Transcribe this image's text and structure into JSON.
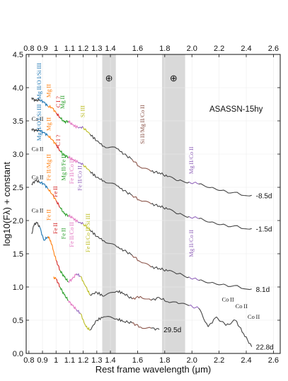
{
  "chart_data": {
    "type": "line",
    "title": "ASASSN-15hy",
    "xlabel": "Rest frame wavelength (μm)",
    "ylabel": "log10(Fλ) + constant",
    "xlim": [
      0.78,
      2.65
    ],
    "ylim": [
      0.0,
      4.5
    ],
    "x_ticks": [
      "0.8",
      "0.9",
      "1",
      "1.1",
      "1.2",
      "1.3",
      "1.4",
      "1.6",
      "1.8",
      "2.0",
      "2.2",
      "2.4",
      "2.6"
    ],
    "y_ticks": [
      "0.0",
      "0.5",
      "1.0",
      "1.5",
      "2.0",
      "2.5",
      "3.0",
      "3.5",
      "4.0",
      "4.5"
    ],
    "telluric_bands": [
      {
        "symbol": "⊕",
        "x": [
          1.34,
          1.44
        ]
      },
      {
        "symbol": "⊕",
        "x": [
          1.78,
          1.95
        ]
      }
    ],
    "series": [
      {
        "name": "-8.5d",
        "points": [
          [
            0.82,
            3.85
          ],
          [
            0.85,
            3.8
          ],
          [
            0.88,
            3.82
          ],
          [
            0.91,
            3.78
          ],
          [
            0.94,
            3.72
          ],
          [
            0.97,
            3.7
          ],
          [
            1.0,
            3.62
          ],
          [
            1.03,
            3.55
          ],
          [
            1.06,
            3.48
          ],
          [
            1.09,
            3.5
          ],
          [
            1.12,
            3.44
          ],
          [
            1.16,
            3.4
          ],
          [
            1.2,
            3.4
          ],
          [
            1.25,
            3.3
          ],
          [
            1.3,
            3.2
          ],
          [
            1.35,
            3.12
          ],
          [
            1.45,
            3.08
          ],
          [
            1.5,
            3.0
          ],
          [
            1.56,
            2.92
          ],
          [
            1.62,
            2.8
          ],
          [
            1.7,
            2.74
          ],
          [
            1.76,
            2.72
          ],
          [
            1.82,
            2.66
          ],
          [
            1.9,
            2.6
          ],
          [
            1.98,
            2.58
          ],
          [
            2.05,
            2.55
          ],
          [
            2.15,
            2.5
          ],
          [
            2.25,
            2.44
          ],
          [
            2.35,
            2.4
          ],
          [
            2.44,
            2.38
          ]
        ]
      },
      {
        "name": "-1.5d",
        "points": [
          [
            0.82,
            3.38
          ],
          [
            0.85,
            3.35
          ],
          [
            0.88,
            3.36
          ],
          [
            0.91,
            3.32
          ],
          [
            0.94,
            3.28
          ],
          [
            0.97,
            3.22
          ],
          [
            1.0,
            3.14
          ],
          [
            1.03,
            3.05
          ],
          [
            1.06,
            2.98
          ],
          [
            1.09,
            2.96
          ],
          [
            1.12,
            2.92
          ],
          [
            1.16,
            2.88
          ],
          [
            1.2,
            2.84
          ],
          [
            1.25,
            2.74
          ],
          [
            1.3,
            2.65
          ],
          [
            1.35,
            2.6
          ],
          [
            1.45,
            2.52
          ],
          [
            1.5,
            2.45
          ],
          [
            1.56,
            2.38
          ],
          [
            1.62,
            2.3
          ],
          [
            1.7,
            2.25
          ],
          [
            1.76,
            2.22
          ],
          [
            1.82,
            2.17
          ],
          [
            1.9,
            2.1
          ],
          [
            1.98,
            2.06
          ],
          [
            2.05,
            2.03
          ],
          [
            2.15,
            1.98
          ],
          [
            2.25,
            1.93
          ],
          [
            2.35,
            1.9
          ],
          [
            2.44,
            1.88
          ]
        ]
      },
      {
        "name": "8.1d",
        "points": [
          [
            0.82,
            2.55
          ],
          [
            0.85,
            2.6
          ],
          [
            0.88,
            2.58
          ],
          [
            0.91,
            2.55
          ],
          [
            0.94,
            2.48
          ],
          [
            0.97,
            2.4
          ],
          [
            1.0,
            2.3
          ],
          [
            1.03,
            2.2
          ],
          [
            1.06,
            2.1
          ],
          [
            1.09,
            2.08
          ],
          [
            1.12,
            2.04
          ],
          [
            1.16,
            1.98
          ],
          [
            1.2,
            1.95
          ],
          [
            1.25,
            1.86
          ],
          [
            1.3,
            1.76
          ],
          [
            1.35,
            1.7
          ],
          [
            1.45,
            1.6
          ],
          [
            1.5,
            1.55
          ],
          [
            1.56,
            1.48
          ],
          [
            1.62,
            1.38
          ],
          [
            1.7,
            1.3
          ],
          [
            1.76,
            1.28
          ],
          [
            1.82,
            1.24
          ],
          [
            1.9,
            1.2
          ],
          [
            1.98,
            1.15
          ],
          [
            2.05,
            1.1
          ],
          [
            2.15,
            1.07
          ],
          [
            2.25,
            1.03
          ],
          [
            2.35,
            1.0
          ],
          [
            2.44,
            0.97
          ]
        ]
      },
      {
        "name": "22.8d",
        "points": [
          [
            0.82,
            1.8
          ],
          [
            0.84,
            1.95
          ],
          [
            0.86,
            1.96
          ],
          [
            0.88,
            1.9
          ],
          [
            0.91,
            1.7
          ],
          [
            0.94,
            1.76
          ],
          [
            0.96,
            1.7
          ],
          [
            0.98,
            1.55
          ],
          [
            1.0,
            1.4
          ],
          [
            1.03,
            1.25
          ],
          [
            1.06,
            1.15
          ],
          [
            1.09,
            1.08
          ],
          [
            1.12,
            1.12
          ],
          [
            1.15,
            1.2
          ],
          [
            1.18,
            1.16
          ],
          [
            1.22,
            1.0
          ],
          [
            1.25,
            0.88
          ],
          [
            1.3,
            0.92
          ],
          [
            1.35,
            0.86
          ],
          [
            1.45,
            0.94
          ],
          [
            1.5,
            0.9
          ],
          [
            1.56,
            0.82
          ],
          [
            1.62,
            0.86
          ],
          [
            1.7,
            0.8
          ],
          [
            1.76,
            0.84
          ],
          [
            1.82,
            0.78
          ],
          [
            1.9,
            0.75
          ],
          [
            1.98,
            0.72
          ],
          [
            2.05,
            0.68
          ],
          [
            2.12,
            0.4
          ],
          [
            2.18,
            0.55
          ],
          [
            2.25,
            0.42
          ],
          [
            2.32,
            0.5
          ],
          [
            2.38,
            0.3
          ],
          [
            2.44,
            0.1
          ]
        ]
      },
      {
        "name": "29.5d",
        "points": [
          [
            0.98,
            1.15
          ],
          [
            1.0,
            1.12
          ],
          [
            1.03,
            1.0
          ],
          [
            1.06,
            0.88
          ],
          [
            1.09,
            0.8
          ],
          [
            1.12,
            0.72
          ],
          [
            1.15,
            0.66
          ],
          [
            1.18,
            0.6
          ],
          [
            1.22,
            0.4
          ],
          [
            1.25,
            0.35
          ],
          [
            1.3,
            0.5
          ],
          [
            1.35,
            0.55
          ],
          [
            1.45,
            0.52
          ],
          [
            1.5,
            0.48
          ],
          [
            1.56,
            0.46
          ],
          [
            1.62,
            0.4
          ],
          [
            1.7,
            0.38
          ],
          [
            1.76,
            0.36
          ]
        ]
      }
    ],
    "line_annotations": [
      {
        "text": "Ca II",
        "color": "#222222",
        "x": 0.82,
        "y": 3.5,
        "vertical": false
      },
      {
        "text": "Mg II/O I/Si III",
        "color": "#1f77b4",
        "x": 0.89,
        "y": 3.82,
        "vertical": true
      },
      {
        "text": "Mg II",
        "color": "#ff7f0e",
        "x": 0.96,
        "y": 3.85,
        "vertical": true
      },
      {
        "text": "C I ?",
        "color": "#d62728",
        "x": 1.03,
        "y": 3.7,
        "vertical": true
      },
      {
        "text": "Mg II",
        "color": "#2ca02c",
        "x": 1.06,
        "y": 3.68,
        "vertical": true
      },
      {
        "text": "Si III",
        "color": "#bcbd22",
        "x": 1.21,
        "y": 3.55,
        "vertical": true
      },
      {
        "text": "Si II/Mg II/Co II",
        "color": "#8c564b",
        "x": 1.65,
        "y": 3.15,
        "vertical": true
      },
      {
        "text": "Ca II",
        "color": "#222222",
        "x": 0.82,
        "y": 3.05,
        "vertical": false
      },
      {
        "text": "Mg II/O I/Si III",
        "color": "#1f77b4",
        "x": 0.89,
        "y": 3.2,
        "vertical": true
      },
      {
        "text": "Mg II",
        "color": "#ff7f0e",
        "x": 0.96,
        "y": 3.35,
        "vertical": true
      },
      {
        "text": "C I ?",
        "color": "#d62728",
        "x": 1.03,
        "y": 3.12,
        "vertical": true
      },
      {
        "text": "Mg II/Co II",
        "color": "#9467bd",
        "x": 2.01,
        "y": 2.7,
        "vertical": true
      },
      {
        "text": "Ca II",
        "color": "#222222",
        "x": 0.82,
        "y": 2.62,
        "vertical": false
      },
      {
        "text": "Fe II/Mg II",
        "color": "#ff7f0e",
        "x": 0.96,
        "y": 2.6,
        "vertical": true
      },
      {
        "text": "Fe II",
        "color": "#d62728",
        "x": 1.01,
        "y": 2.35,
        "vertical": true
      },
      {
        "text": "Mg II/Fe II",
        "color": "#2ca02c",
        "x": 1.07,
        "y": 2.6,
        "vertical": true
      },
      {
        "text": "Fe II/Co II",
        "color": "#e377c2",
        "x": 1.13,
        "y": 2.55,
        "vertical": true
      },
      {
        "text": "Fe II/Co II",
        "color": "#9467bd",
        "x": 1.19,
        "y": 2.45,
        "vertical": true
      },
      {
        "text": "Ca II",
        "color": "#222222",
        "x": 0.82,
        "y": 2.12,
        "vertical": false
      },
      {
        "text": "Fe II",
        "color": "#ff7f0e",
        "x": 0.96,
        "y": 2.0,
        "vertical": true
      },
      {
        "text": "Fe II",
        "color": "#d62728",
        "x": 1.01,
        "y": 1.8,
        "vertical": true
      },
      {
        "text": "Fe II",
        "color": "#2ca02c",
        "x": 1.07,
        "y": 1.72,
        "vertical": true
      },
      {
        "text": "Fe II/Co II",
        "color": "#e377c2",
        "x": 1.13,
        "y": 1.6,
        "vertical": true
      },
      {
        "text": "Fe II/Co II/Si III",
        "color": "#bcbd22",
        "x": 1.25,
        "y": 1.52,
        "vertical": true
      },
      {
        "text": "Mg II/Co II",
        "color": "#9467bd",
        "x": 2.01,
        "y": 1.45,
        "vertical": true
      },
      {
        "text": "Co II",
        "color": "#222222",
        "x": 2.22,
        "y": 0.78,
        "vertical": false
      },
      {
        "text": "Co II",
        "color": "#222222",
        "x": 2.32,
        "y": 0.68,
        "vertical": false
      },
      {
        "text": "Co II",
        "color": "#222222",
        "x": 2.41,
        "y": 0.52,
        "vertical": false
      }
    ]
  }
}
